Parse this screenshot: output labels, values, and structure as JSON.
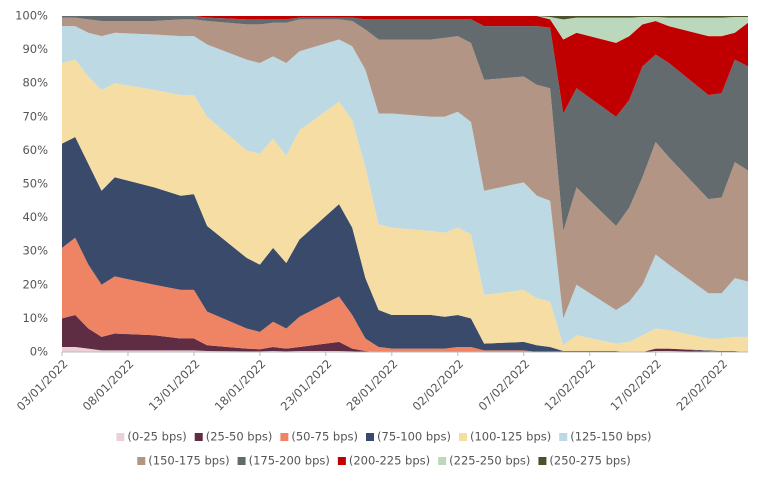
{
  "chart_data": {
    "type": "stacked-area-percent",
    "x": [
      "03/01/2022",
      "04/01/2022",
      "05/01/2022",
      "06/01/2022",
      "07/01/2022",
      "10/01/2022",
      "12/01/2022",
      "13/01/2022",
      "14/01/2022",
      "17/01/2022",
      "18/01/2022",
      "19/01/2022",
      "20/01/2022",
      "21/01/2022",
      "24/01/2022",
      "25/01/2022",
      "26/01/2022",
      "27/01/2022",
      "28/01/2022",
      "31/01/2022",
      "01/02/2022",
      "02/02/2022",
      "03/02/2022",
      "04/02/2022",
      "07/02/2022",
      "08/02/2022",
      "09/02/2022",
      "10/02/2022",
      "11/02/2022",
      "14/02/2022",
      "15/02/2022",
      "16/02/2022",
      "17/02/2022",
      "18/02/2022",
      "21/02/2022",
      "22/02/2022",
      "23/02/2022",
      "24/02/2022"
    ],
    "xlim": [
      "03/01/2022",
      "24/02/2022"
    ],
    "xticks": [
      "03/01/2022",
      "08/01/2022",
      "13/01/2022",
      "18/01/2022",
      "23/01/2022",
      "28/01/2022",
      "02/02/2022",
      "07/02/2022",
      "12/02/2022",
      "17/02/2022",
      "22/02/2022"
    ],
    "ylim": [
      0,
      100
    ],
    "yticks": [
      {
        "value": 0,
        "label": "0%"
      },
      {
        "value": 10,
        "label": "10%"
      },
      {
        "value": 20,
        "label": "20%"
      },
      {
        "value": 30,
        "label": "30%"
      },
      {
        "value": 40,
        "label": "40%"
      },
      {
        "value": 50,
        "label": "50%"
      },
      {
        "value": 60,
        "label": "60%"
      },
      {
        "value": 70,
        "label": "70%"
      },
      {
        "value": 80,
        "label": "80%"
      },
      {
        "value": 90,
        "label": "90%"
      },
      {
        "value": 100,
        "label": "100%"
      }
    ],
    "grid": false,
    "legend": "bottom",
    "series": [
      {
        "name": "(0-25 bps)",
        "color": "#ecd0d8",
        "values": [
          1.5,
          1.5,
          1,
          0.5,
          0.5,
          0.5,
          0.5,
          0.5,
          0.3,
          0.2,
          0.2,
          0.3,
          0.2,
          0.3,
          0.3,
          0.2,
          0,
          0,
          0,
          0,
          0,
          0,
          0,
          0,
          0,
          0,
          0,
          0,
          0,
          0,
          0,
          0,
          0.3,
          0.3,
          0,
          0,
          0,
          0
        ]
      },
      {
        "name": "(25-50 bps)",
        "color": "#5e2d44",
        "values": [
          8.5,
          9.5,
          6,
          4,
          5,
          4.5,
          3.5,
          3.5,
          1.7,
          0.8,
          0.6,
          1.2,
          0.8,
          1.2,
          2.7,
          0.8,
          0.3,
          0,
          0,
          0,
          0,
          0,
          0,
          0,
          0,
          0,
          0,
          0,
          0,
          0,
          0,
          0,
          0.7,
          0.7,
          0.3,
          0,
          0,
          0
        ]
      },
      {
        "name": "(50-75 bps)",
        "color": "#ef8464",
        "values": [
          21,
          23,
          19,
          15.5,
          17,
          15,
          14.5,
          14.5,
          10,
          6,
          5.2,
          7.5,
          6,
          9,
          13.5,
          10,
          3.7,
          1.5,
          1,
          1,
          1,
          1.5,
          1.5,
          0.5,
          0.5,
          0,
          0,
          0,
          0,
          0,
          0,
          0,
          0,
          0,
          0,
          0,
          0,
          0
        ]
      },
      {
        "name": "(75-100 bps)",
        "color": "#3a4a6a",
        "values": [
          31,
          30,
          30,
          28,
          29.5,
          29,
          28,
          28.5,
          25.5,
          21,
          20,
          22,
          19.5,
          23,
          27.5,
          26,
          18,
          11,
          10,
          10,
          9.5,
          9.5,
          8.5,
          2,
          2.5,
          2,
          1.5,
          0.3,
          0.3,
          0.3,
          0,
          0,
          0,
          0,
          0.2,
          0.3,
          0.3,
          0
        ]
      },
      {
        "name": "(100-125 bps)",
        "color": "#f6dda4",
        "values": [
          24,
          23,
          26,
          30,
          28,
          29,
          30,
          29.5,
          32.5,
          32,
          33,
          32.5,
          32,
          32.5,
          30.5,
          32,
          33,
          25.5,
          26,
          25,
          25,
          26,
          25,
          14.5,
          15.5,
          14,
          13.5,
          1.7,
          4.7,
          2.2,
          3,
          5,
          6,
          5.5,
          3.5,
          3.7,
          4.2,
          4.5
        ]
      },
      {
        "name": "(125-150 bps)",
        "color": "#bcd9e4",
        "values": [
          11,
          10,
          13,
          16,
          15,
          16.5,
          17.5,
          17.5,
          21.5,
          27,
          27,
          24.5,
          27.5,
          23.5,
          18.5,
          22,
          29,
          33,
          34,
          34,
          34.5,
          34.5,
          33.5,
          31,
          32,
          30.5,
          30,
          8,
          15,
          10,
          12,
          15,
          22,
          19.5,
          13.5,
          13.5,
          17.5,
          16.5
        ]
      },
      {
        "name": "(150-175 bps)",
        "color": "#b29584",
        "values": [
          2.5,
          2.5,
          4,
          4.5,
          3.5,
          4,
          5,
          5,
          7,
          10.5,
          11.5,
          10,
          12,
          9.5,
          6,
          7.5,
          12,
          22,
          22,
          23,
          23.5,
          22.5,
          23.5,
          33,
          31.5,
          33,
          33.5,
          26,
          29,
          25,
          28,
          32,
          33.5,
          32,
          28,
          28.5,
          34.5,
          33
        ]
      },
      {
        "name": "(175-200 bps)",
        "color": "#636b6f",
        "values": [
          0.5,
          0.5,
          1,
          1.5,
          1.5,
          1.5,
          1,
          1,
          1,
          1.5,
          1.5,
          1,
          1,
          0.5,
          0.5,
          1,
          3,
          6,
          6,
          6,
          5.5,
          5,
          7,
          16,
          15,
          17.5,
          18,
          35,
          29.5,
          32.5,
          32,
          33,
          26,
          28,
          31,
          31,
          30.5,
          31
        ]
      },
      {
        "name": "(200-225 bps)",
        "color": "#c00000",
        "values": [
          0,
          0,
          0,
          0,
          0,
          0,
          0,
          0,
          0.5,
          1,
          1,
          1,
          1,
          0.5,
          0.5,
          0.5,
          1,
          1,
          1,
          1,
          1,
          1,
          1,
          3,
          3,
          3,
          2.5,
          22,
          16.5,
          22,
          19,
          12.5,
          10,
          11,
          17.5,
          17,
          8,
          13
        ]
      },
      {
        "name": "(225-250 bps)",
        "color": "#bcd8bc",
        "values": [
          0,
          0,
          0,
          0,
          0,
          0,
          0,
          0,
          0,
          0,
          0,
          0,
          0,
          0,
          0,
          0,
          0,
          0,
          0,
          0,
          0,
          0,
          0,
          0,
          0,
          0,
          0.7,
          6,
          4.5,
          7.5,
          5.5,
          2.2,
          1.2,
          2.5,
          5.5,
          5.5,
          4.7,
          1.7
        ]
      },
      {
        "name": "(250-275 bps)",
        "color": "#4b5128",
        "values": [
          0,
          0,
          0,
          0,
          0,
          0,
          0,
          0,
          0,
          0,
          0,
          0,
          0,
          0,
          0,
          0,
          0,
          0,
          0,
          0,
          0,
          0,
          0,
          0,
          0,
          0,
          0.3,
          1,
          0.5,
          0.5,
          0.5,
          0.3,
          0.3,
          0.5,
          0.5,
          0.5,
          0.3,
          0.3
        ]
      }
    ]
  }
}
